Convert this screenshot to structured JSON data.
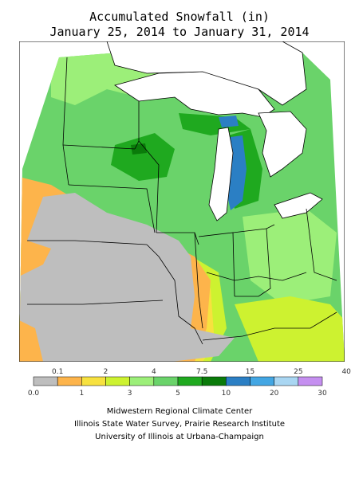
{
  "title": {
    "line1": "Accumulated Snowfall (in)",
    "line2": "January 25, 2014 to January 31, 2014"
  },
  "legend": {
    "top_labels": [
      "0.1",
      "2",
      "4",
      "7.5",
      "15",
      "25",
      "40"
    ],
    "bottom_labels": [
      "0.0",
      "1",
      "3",
      "5",
      "10",
      "20",
      "30",
      "50"
    ],
    "colors": [
      "#bebebe",
      "#fdb44b",
      "#f7e13f",
      "#cdf230",
      "#9cef79",
      "#6ad36a",
      "#1fa91f",
      "#0a7b0a",
      "#2b7fc4",
      "#43a6e3",
      "#a9d6f2",
      "#c58ff0"
    ]
  },
  "colors": {
    "gray": "#bebebe",
    "orange": "#fdb44b",
    "yellow": "#f7e13f",
    "yellowgreen": "#cdf230",
    "lightgreen": "#9cef79",
    "green": "#6ad36a",
    "darkgreen": "#1fa91f",
    "deepgreen": "#0a7b0a",
    "blue": "#2b7fc4"
  },
  "credits": [
    "Midwestern Regional Climate Center",
    "Illinois State Water Survey, Prairie Research Institute",
    "University of Illinois at Urbana-Champaign"
  ]
}
